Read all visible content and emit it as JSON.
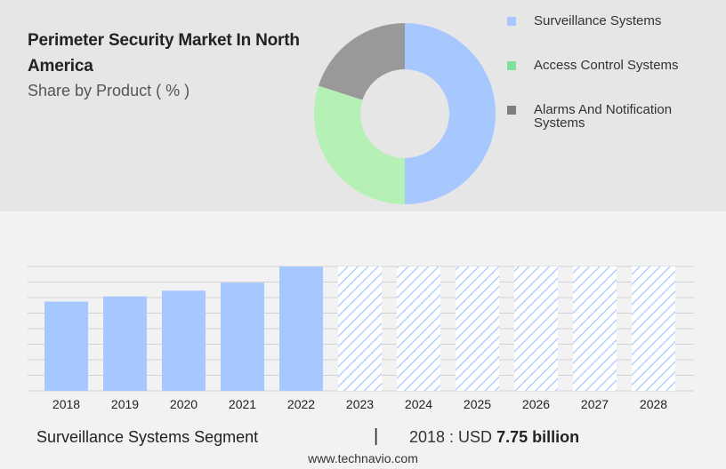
{
  "header": {
    "title": "Perimeter Security Market In North America",
    "subtitle": "Share by Product ( % )"
  },
  "chart_data": [
    {
      "type": "pie",
      "variant": "donut",
      "slices": [
        {
          "label": "Surveillance Systems",
          "value": 50,
          "color": "#a6c8ff"
        },
        {
          "label": "Access Control Systems",
          "value": 30,
          "color": "#b5f0b5"
        },
        {
          "label": "Alarms And Notification Systems",
          "value": 20,
          "color": "#999999"
        }
      ],
      "legend": "right"
    },
    {
      "type": "bar",
      "categories": [
        "2018",
        "2019",
        "2020",
        "2021",
        "2022",
        "2023",
        "2024",
        "2025",
        "2026",
        "2027",
        "2028"
      ],
      "values": [
        7.75,
        8.2,
        8.7,
        9.4,
        10.8,
        null,
        null,
        null,
        null,
        null,
        null
      ],
      "forecast_years": [
        "2023",
        "2024",
        "2025",
        "2026",
        "2027",
        "2028"
      ],
      "bar_color": "#a6c8ff",
      "forecast_pattern": "diagonal hatch",
      "ylim": [
        0,
        10.8
      ],
      "grid": true
    }
  ],
  "footer": {
    "segment": "Surveillance Systems Segment",
    "separator": "|",
    "year_prefix": "2018 : USD",
    "value": "7.75 billion",
    "url": "www.technavio.com"
  }
}
